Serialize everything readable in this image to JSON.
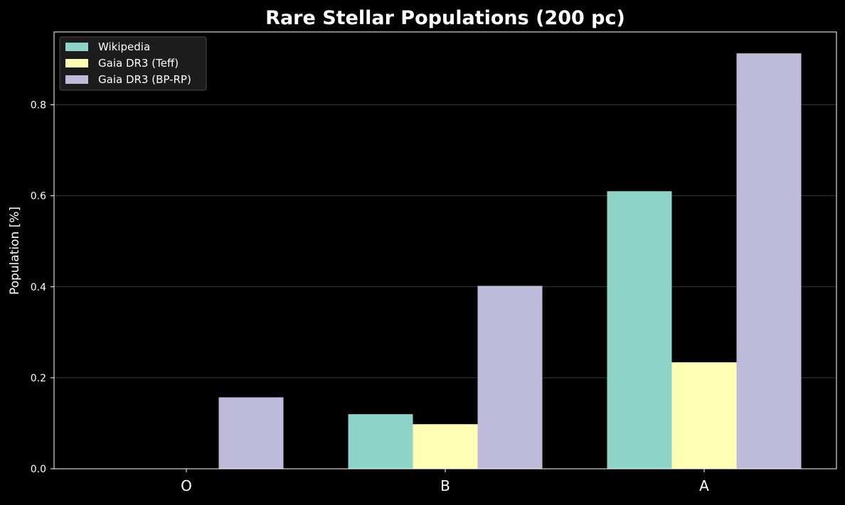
{
  "chart_data": {
    "type": "bar",
    "title": "Rare Stellar Populations (200 pc)",
    "xlabel": "",
    "ylabel": "Population [%]",
    "categories": [
      "O",
      "B",
      "A"
    ],
    "series": [
      {
        "name": "Wikipedia",
        "color": "#8dd3c7",
        "values": [
          0.0,
          0.12,
          0.61
        ]
      },
      {
        "name": "Gaia DR3 (Teff)",
        "color": "#ffffb3",
        "values": [
          0.0,
          0.098,
          0.234
        ]
      },
      {
        "name": "Gaia DR3 (BP-RP)",
        "color": "#bebada",
        "values": [
          0.157,
          0.402,
          0.913
        ]
      }
    ],
    "ylim": [
      0,
      0.96
    ],
    "yticks": [
      0.0,
      0.2,
      0.4,
      0.6,
      0.8
    ],
    "ytick_labels": [
      "0.0",
      "0.2",
      "0.4",
      "0.6",
      "0.8"
    ],
    "grid": true,
    "legend_position": "top-left",
    "background_color": "#000000",
    "text_color": "#ffffff"
  }
}
